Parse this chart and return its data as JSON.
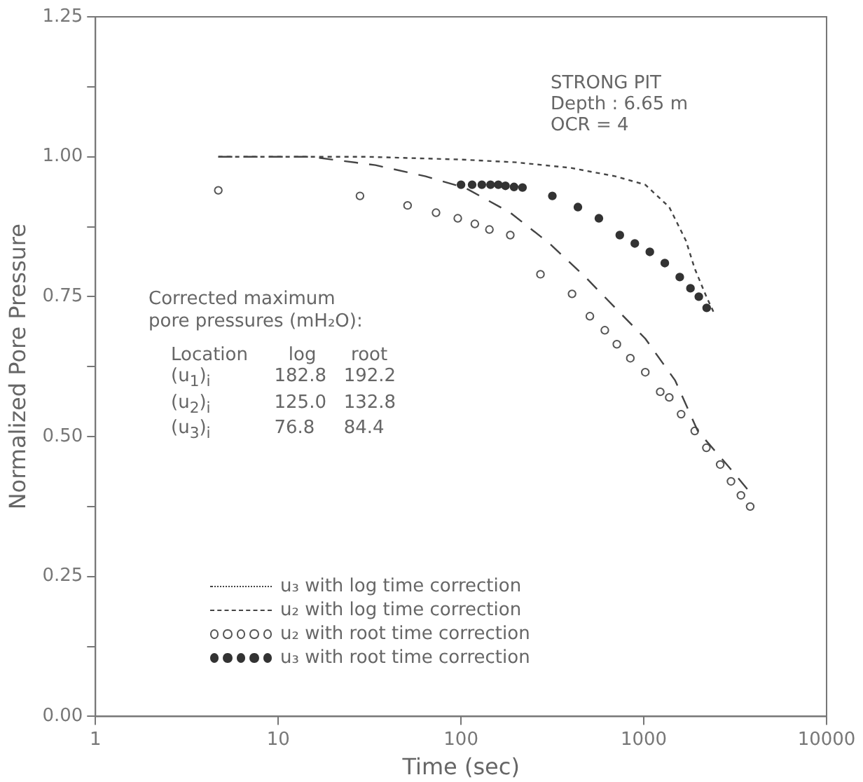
{
  "chart_data": {
    "type": "line",
    "xlabel": "Time (sec)",
    "ylabel": "Normalized Pore Pressure",
    "log": "x",
    "xlim": [
      1,
      10000
    ],
    "xticks": [
      1,
      10,
      100,
      1000,
      10000
    ],
    "ylim": [
      0,
      1.25
    ],
    "yticks": [
      {
        "value": 0,
        "label": "0.00"
      },
      {
        "value": 0.125,
        "label": null
      },
      {
        "value": 0.25,
        "label": "0.25"
      },
      {
        "value": 0.375,
        "label": null
      },
      {
        "value": 0.5,
        "label": "0.50"
      },
      {
        "value": 0.625,
        "label": null
      },
      {
        "value": 0.75,
        "label": "0.75"
      },
      {
        "value": 0.875,
        "label": null
      },
      {
        "value": 1,
        "label": "1.00"
      },
      {
        "value": 1.125,
        "label": null
      },
      {
        "value": 1.25,
        "label": "1.25"
      }
    ],
    "grid": false,
    "legend": "bottom",
    "annotations": [
      "STRONG PIT",
      "Depth : 6.65 m",
      "OCR = 4",
      "Corrected maximum",
      "pore pressures (mH₂O):",
      "Location       log      root",
      "(u$_{1}$)$_{i}$           182.8   192.2",
      "(u$_{2}$)$_{i}$           125.0   132.8",
      "(u$_{3}$)$_{i}$           76.8     84.4"
    ],
    "series": [
      {
        "name": "u₃ with log time correction",
        "line_style": "dotted",
        "marker": "none",
        "color": "#444444",
        "x": [
          4.7,
          30,
          100,
          200,
          400,
          700,
          1019,
          1378,
          1700,
          1900,
          2200,
          2428
        ],
        "values": [
          1.0,
          1.0,
          0.995,
          0.99,
          0.98,
          0.965,
          0.95,
          0.91,
          0.85,
          0.8,
          0.75,
          0.72
        ]
      },
      {
        "name": "u₂ with log time correction",
        "line_style": "dashed",
        "marker": "none",
        "color": "#444444",
        "x": [
          4.7,
          15,
          34,
          64,
          106,
          186,
          305,
          479,
          698,
          1019,
          1486,
          1973,
          2933,
          3820
        ],
        "values": [
          1.0,
          1.0,
          0.985,
          0.965,
          0.944,
          0.9,
          0.845,
          0.785,
          0.73,
          0.675,
          0.6,
          0.51,
          0.445,
          0.4
        ]
      },
      {
        "name": "u₂ with root time correction",
        "type": "scatter",
        "marker": "circle",
        "color": "#555555",
        "x": [
          4.7,
          28,
          51,
          73,
          96,
          119,
          143,
          186,
          272,
          405,
          507,
          612,
          712,
          844,
          1019,
          1230,
          1378,
          1600,
          1900,
          2200,
          2618,
          3000,
          3400,
          3820
        ],
        "values": [
          0.94,
          0.93,
          0.913,
          0.9,
          0.89,
          0.88,
          0.87,
          0.86,
          0.79,
          0.755,
          0.715,
          0.69,
          0.665,
          0.64,
          0.615,
          0.58,
          0.57,
          0.54,
          0.51,
          0.48,
          0.45,
          0.42,
          0.395,
          0.375
        ]
      },
      {
        "name": "u₃ with root time correction",
        "type": "scatter",
        "marker": "circle",
        "color": "#333333",
        "x": [
          100,
          115,
          130,
          145,
          160,
          175,
          195,
          217,
          316,
          436,
          568,
          739,
          893,
          1079,
          1303,
          1573,
          1800,
          2000,
          2208
        ],
        "values": [
          0.95,
          0.95,
          0.95,
          0.95,
          0.95,
          0.948,
          0.946,
          0.945,
          0.93,
          0.91,
          0.89,
          0.86,
          0.845,
          0.83,
          0.81,
          0.785,
          0.765,
          0.75,
          0.73
        ]
      }
    ]
  }
}
